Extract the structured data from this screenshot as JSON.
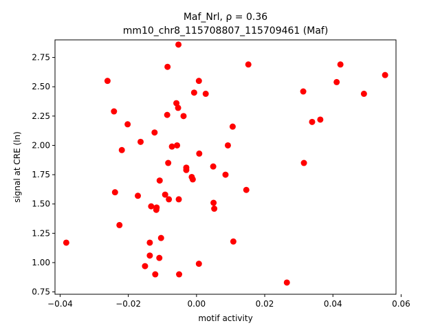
{
  "chart_data": {
    "type": "scatter",
    "title_line1": "Maf_Nrl, ρ = 0.36",
    "title_line2": "mm10_chr8_115708807_115709461 (Maf)",
    "xlabel": "motif activity",
    "ylabel": "signal at CRE (ln)",
    "xlim": [
      -0.0415,
      0.0585
    ],
    "ylim": [
      0.73,
      2.9
    ],
    "x_ticks": [
      -0.04,
      -0.02,
      0.0,
      0.02,
      0.04,
      0.06
    ],
    "x_tick_labels": [
      "−0.04",
      "−0.02",
      "0.00",
      "0.02",
      "0.04",
      "0.06"
    ],
    "y_ticks": [
      0.75,
      1.0,
      1.25,
      1.5,
      1.75,
      2.0,
      2.25,
      2.5,
      2.75
    ],
    "y_tick_labels": [
      "0.75",
      "1.00",
      "1.25",
      "1.50",
      "1.75",
      "2.00",
      "2.25",
      "2.50",
      "2.75"
    ],
    "grid": false,
    "marker_color": "#ff0000",
    "points": [
      [
        -0.0382,
        1.17
      ],
      [
        -0.0261,
        2.55
      ],
      [
        -0.0242,
        2.29
      ],
      [
        -0.0239,
        1.6
      ],
      [
        -0.0226,
        1.32
      ],
      [
        -0.0219,
        1.96
      ],
      [
        -0.0202,
        2.18
      ],
      [
        -0.0172,
        1.57
      ],
      [
        -0.0164,
        2.03
      ],
      [
        -0.0151,
        0.97
      ],
      [
        -0.0137,
        1.17
      ],
      [
        -0.0137,
        1.06
      ],
      [
        -0.0133,
        1.48
      ],
      [
        -0.0123,
        2.11
      ],
      [
        -0.0121,
        0.9
      ],
      [
        -0.0118,
        1.45
      ],
      [
        -0.0117,
        1.47
      ],
      [
        -0.0109,
        1.04
      ],
      [
        -0.0108,
        1.7
      ],
      [
        -0.0104,
        1.21
      ],
      [
        -0.0092,
        1.58
      ],
      [
        -0.0086,
        2.26
      ],
      [
        -0.0085,
        2.67
      ],
      [
        -0.0083,
        1.85
      ],
      [
        -0.0081,
        1.54
      ],
      [
        -0.0072,
        1.99
      ],
      [
        -0.0059,
        2.36
      ],
      [
        -0.0057,
        2.0
      ],
      [
        -0.0054,
        2.32
      ],
      [
        -0.0053,
        2.86
      ],
      [
        -0.0052,
        1.54
      ],
      [
        -0.0051,
        0.9
      ],
      [
        -0.0038,
        2.25
      ],
      [
        -0.003,
        1.81
      ],
      [
        -0.003,
        1.79
      ],
      [
        -0.0014,
        1.73
      ],
      [
        -0.0011,
        1.71
      ],
      [
        -0.0007,
        2.45
      ],
      [
        0.0007,
        2.55
      ],
      [
        0.0007,
        0.99
      ],
      [
        0.0008,
        1.93
      ],
      [
        0.0027,
        2.44
      ],
      [
        0.0049,
        1.82
      ],
      [
        0.005,
        1.51
      ],
      [
        0.0052,
        1.46
      ],
      [
        0.0085,
        1.75
      ],
      [
        0.0092,
        2.0
      ],
      [
        0.0106,
        2.16
      ],
      [
        0.0108,
        1.18
      ],
      [
        0.0146,
        1.62
      ],
      [
        0.0152,
        2.69
      ],
      [
        0.0265,
        0.83
      ],
      [
        0.0313,
        2.46
      ],
      [
        0.0315,
        1.85
      ],
      [
        0.0339,
        2.2
      ],
      [
        0.0363,
        2.22
      ],
      [
        0.0411,
        2.54
      ],
      [
        0.0422,
        2.69
      ],
      [
        0.0491,
        2.44
      ],
      [
        0.0553,
        2.6
      ]
    ]
  }
}
